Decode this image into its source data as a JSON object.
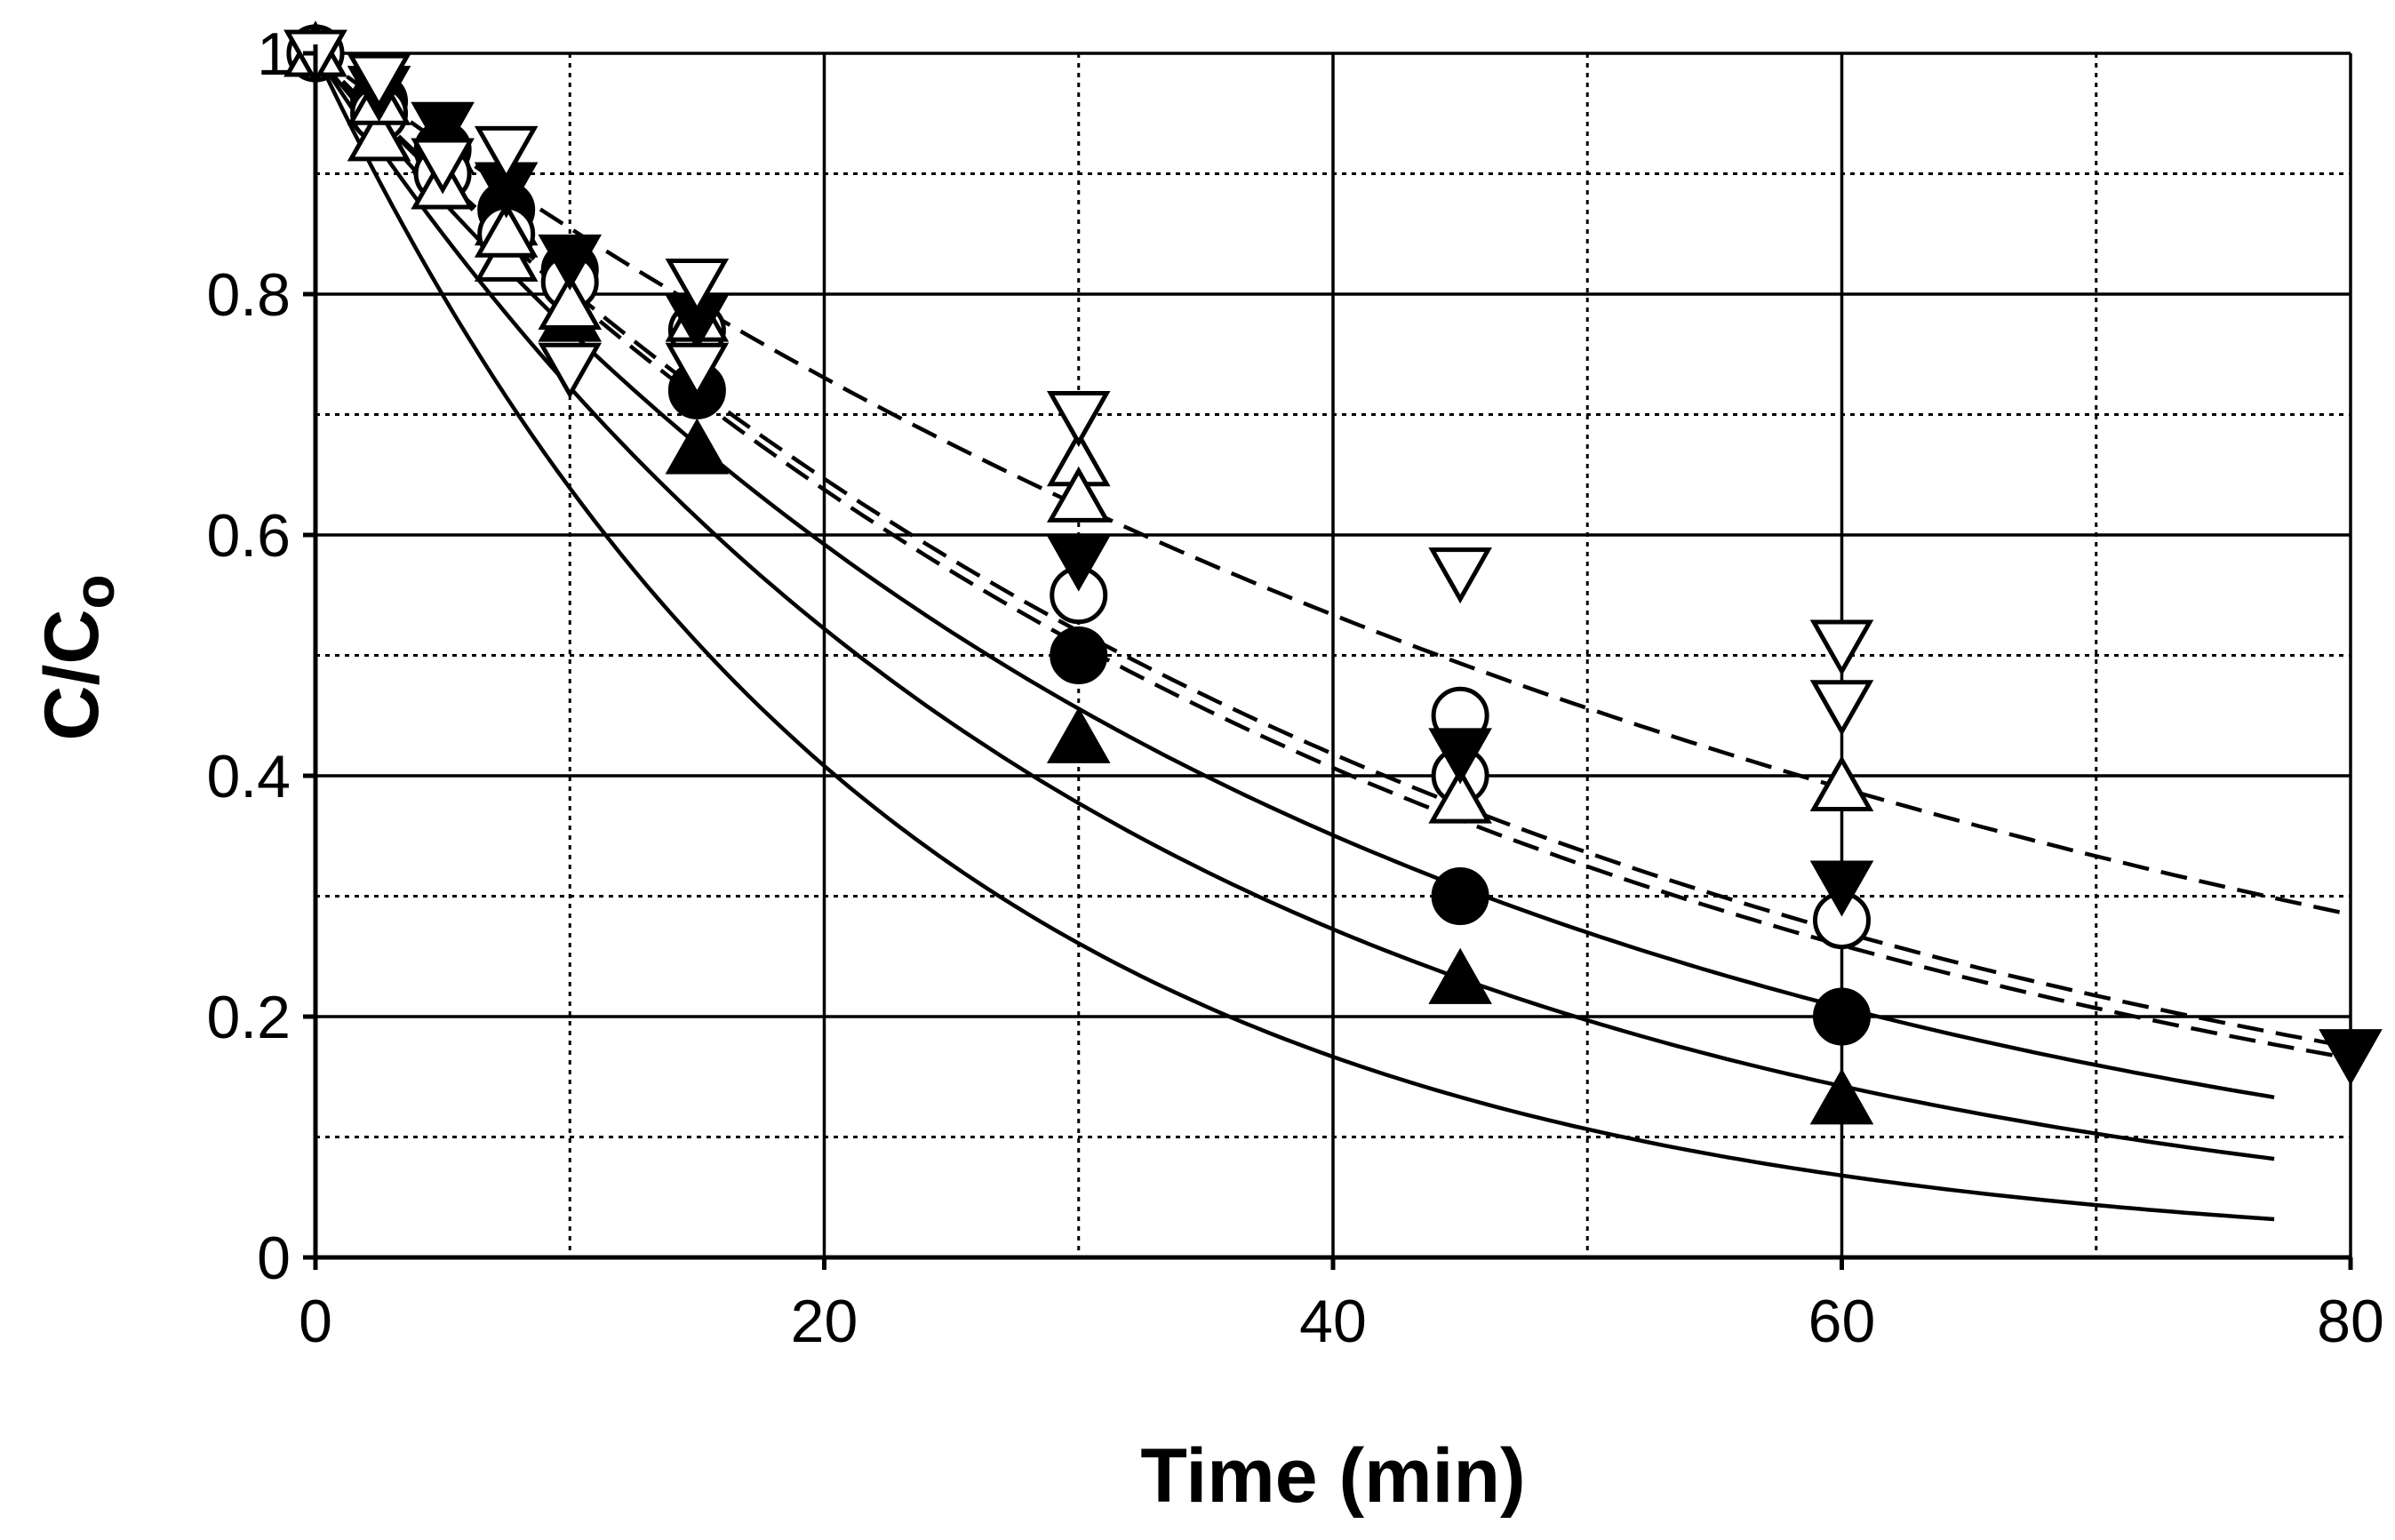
{
  "chart_data": {
    "type": "scatter",
    "title": "",
    "xlabel": "Time (min)",
    "ylabel_main": "C/C",
    "ylabel_sub": "o",
    "xlim": [
      0,
      80
    ],
    "ylim": [
      0,
      1
    ],
    "x_ticks": [
      0,
      20,
      40,
      60,
      80
    ],
    "x_tick_labels": [
      "0",
      "20",
      "40",
      "60",
      "80"
    ],
    "y_ticks": [
      0,
      0.2,
      0.4,
      0.6,
      0.8,
      1
    ],
    "y_tick_labels": [
      "0",
      "0.2",
      "0.4",
      "0.6",
      "0.8",
      "1"
    ],
    "x_minor_grid": [
      10,
      30,
      50,
      70
    ],
    "y_minor_grid": [
      0.1,
      0.3,
      0.5,
      0.7,
      0.9
    ],
    "grid": true,
    "series": [
      {
        "name": "filled-triangle-up",
        "marker": "triangle-up",
        "filled": true,
        "x": [
          0,
          2.5,
          5,
          7.5,
          10,
          15,
          30,
          45,
          60
        ],
        "y": [
          1.0,
          0.96,
          0.92,
          0.86,
          0.78,
          0.67,
          0.43,
          0.23,
          0.13
        ]
      },
      {
        "name": "filled-circle",
        "marker": "circle",
        "filled": true,
        "x": [
          0,
          2.5,
          5,
          7.5,
          10,
          15,
          30,
          45,
          60
        ],
        "y": [
          1.0,
          0.96,
          0.92,
          0.87,
          0.82,
          0.72,
          0.5,
          0.3,
          0.2
        ]
      },
      {
        "name": "open-circle",
        "marker": "circle",
        "filled": false,
        "x": [
          0,
          2.5,
          5,
          7.5,
          10,
          15,
          30,
          45,
          45,
          60
        ],
        "y": [
          1.0,
          0.95,
          0.9,
          0.85,
          0.81,
          0.77,
          0.55,
          0.45,
          0.4,
          0.28
        ]
      },
      {
        "name": "open-triangle-up",
        "marker": "triangle-up",
        "filled": false,
        "x": [
          0,
          2.5,
          2.5,
          5,
          7.5,
          7.5,
          10,
          15,
          30,
          30,
          45,
          60
        ],
        "y": [
          1.0,
          0.93,
          0.96,
          0.89,
          0.83,
          0.85,
          0.79,
          0.78,
          0.66,
          0.63,
          0.38,
          0.39
        ]
      },
      {
        "name": "filled-triangle-down",
        "marker": "triangle-down",
        "filled": true,
        "x": [
          0,
          2.5,
          5,
          7.5,
          10,
          15,
          30,
          45,
          60,
          80
        ],
        "y": [
          1.0,
          0.97,
          0.94,
          0.89,
          0.83,
          0.78,
          0.58,
          0.42,
          0.31,
          0.17
        ]
      },
      {
        "name": "open-triangle-down",
        "marker": "triangle-down",
        "filled": false,
        "x": [
          0,
          2.5,
          5,
          7.5,
          10,
          15,
          15,
          30,
          45,
          60,
          60
        ],
        "y": [
          1.0,
          0.98,
          0.91,
          0.92,
          0.74,
          0.81,
          0.74,
          0.7,
          0.57,
          0.51,
          0.46
        ]
      }
    ],
    "fit_curves": [
      {
        "style": "solid",
        "model": "exp",
        "k": 0.0448,
        "x_end": 77
      },
      {
        "style": "solid",
        "model": "exp",
        "k": 0.0325,
        "x_end": 77
      },
      {
        "style": "solid",
        "model": "exp",
        "k": 0.0262,
        "x_end": 77
      },
      {
        "style": "dashed",
        "model": "exp",
        "k": 0.0225,
        "x_end": 80
      },
      {
        "style": "dashed",
        "model": "exp",
        "k": 0.0218,
        "x_end": 80
      },
      {
        "style": "dashed",
        "model": "exp",
        "k": 0.0157,
        "x_end": 80
      }
    ]
  }
}
